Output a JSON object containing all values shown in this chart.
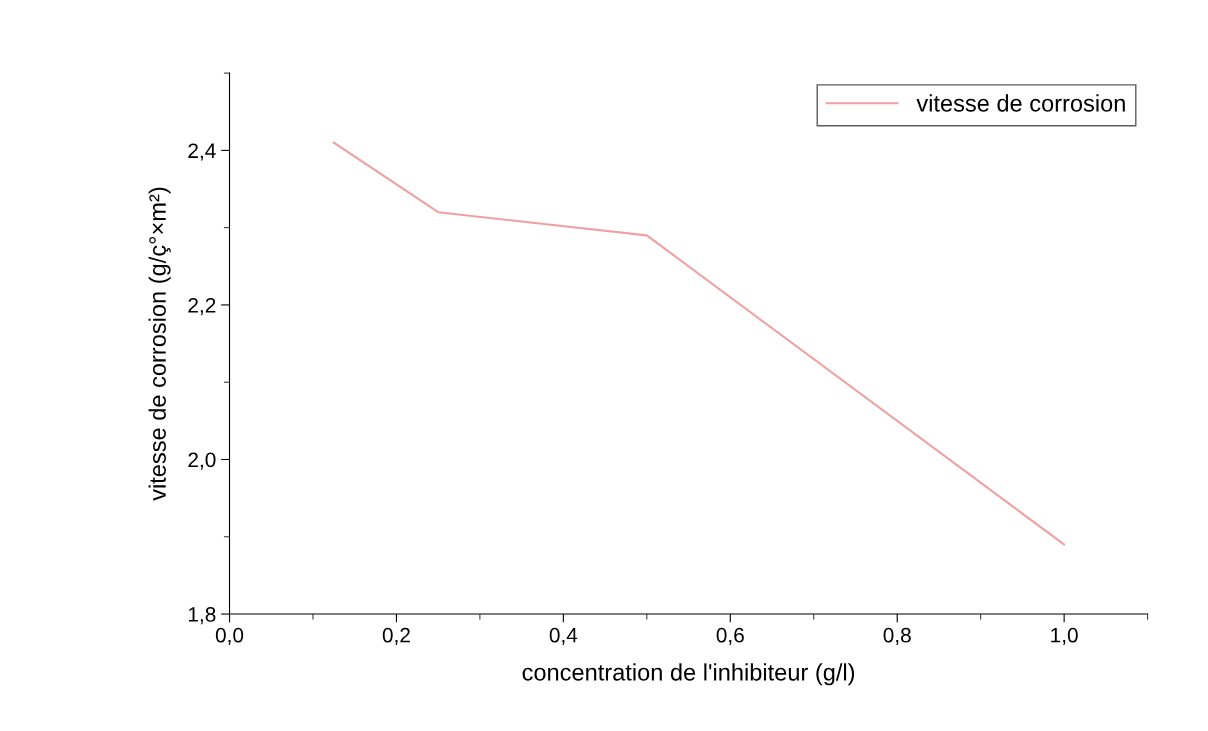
{
  "chart_data": {
    "type": "line",
    "xlabel": "concentration de l'inhibiteur (g/l)",
    "ylabel": "vitesse de corrosion (g/ç°×m²)",
    "x": [
      0.125,
      0.25,
      0.5,
      1.0
    ],
    "series": [
      {
        "name": "vitesse de corrosion",
        "color": "#f0a0a0",
        "values": [
          2.41,
          2.32,
          2.29,
          1.89
        ]
      }
    ],
    "xlim": [
      0,
      1.1
    ],
    "ylim": [
      1.8,
      2.5
    ],
    "xticks": [
      {
        "value": 0.0,
        "label": "0,0"
      },
      {
        "value": 0.2,
        "label": "0,2"
      },
      {
        "value": 0.4,
        "label": "0,4"
      },
      {
        "value": 0.6,
        "label": "0,6"
      },
      {
        "value": 0.8,
        "label": "0,8"
      },
      {
        "value": 1.0,
        "label": "1,0"
      }
    ],
    "yticks": [
      {
        "value": 1.8,
        "label": "1,8"
      },
      {
        "value": 2.0,
        "label": "2,0"
      },
      {
        "value": 2.2,
        "label": "2,2"
      },
      {
        "value": 2.4,
        "label": "2,4"
      }
    ],
    "grid": false,
    "legend": "top right",
    "marker": "none",
    "line_style": "solid"
  }
}
